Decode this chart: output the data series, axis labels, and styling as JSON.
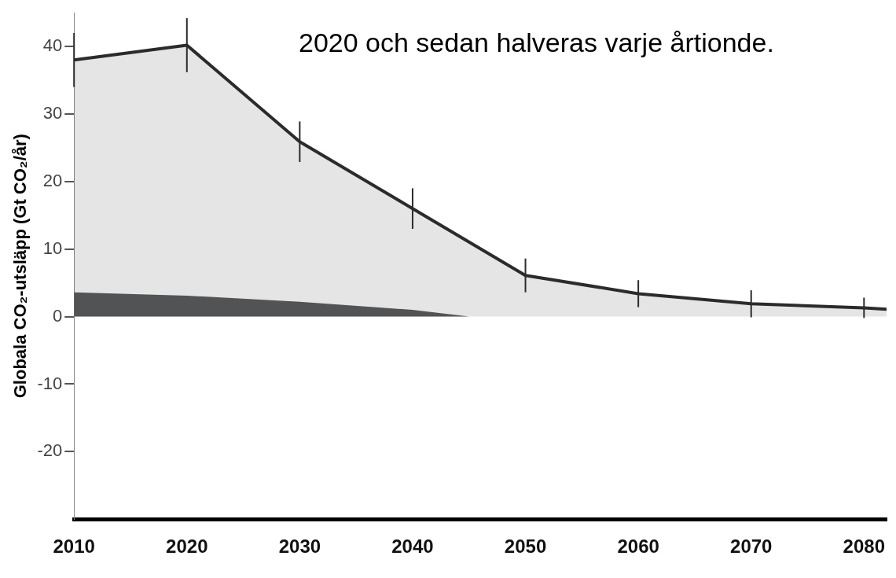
{
  "chart_data": {
    "type": "area",
    "ylabel": "Globala CO₂-utsläpp (Gt CO₂/år)",
    "annotations": [
      "2020 och sedan halveras varje årtionde."
    ],
    "xlim": [
      2010,
      2082
    ],
    "xticks": [
      2010,
      2020,
      2030,
      2040,
      2050,
      2060,
      2070,
      2080
    ],
    "ylim": [
      -30,
      45
    ],
    "yticks": [
      -20,
      -10,
      0,
      10,
      20,
      30,
      40
    ],
    "series": [
      {
        "type": "area",
        "color": "#2b2b2b",
        "x": [
          2010,
          2020,
          2030,
          2040,
          2050,
          2060,
          2070,
          2080,
          2082
        ],
        "values": [
          38,
          40.2,
          25.9,
          16,
          6.1,
          3.4,
          1.9,
          1.3,
          1.1
        ],
        "errors": [
          4,
          4,
          3,
          3,
          2.5,
          2,
          2,
          1.5,
          null
        ]
      },
      {
        "color": "#58595b",
        "x": [
          2010,
          2020,
          2030,
          2040,
          2045,
          2082
        ],
        "values": [
          3.6,
          3.1,
          2.2,
          1,
          0,
          0
        ]
      }
    ]
  }
}
